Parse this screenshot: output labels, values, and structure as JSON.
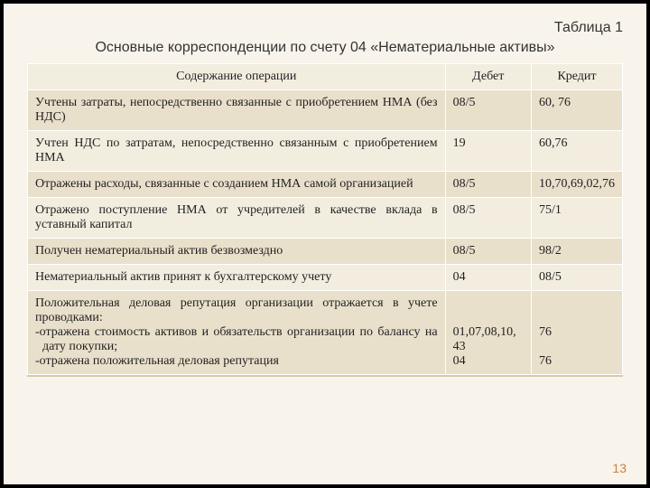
{
  "slide": {
    "table_number": "Таблица 1",
    "caption": "Основные корреспонденции по счету 04 «Нематериальные активы»",
    "page_number": "13"
  },
  "table": {
    "columns": {
      "op": "Содержание операции",
      "debit": "Дебет",
      "credit": "Кредит"
    },
    "column_widths": {
      "op_pct": 71,
      "debit_pct": 14.5,
      "credit_pct": 14.5
    },
    "colors": {
      "header_bg": "#f3ede0",
      "row_even_bg": "#f3ede0",
      "row_odd_bg": "#e9e0cb",
      "border": "#ffffff",
      "slide_bg": "#f9f4eb",
      "outer_border": "#000000",
      "underline": "#d6c9a5",
      "page_number_color": "#c97f3b"
    },
    "fonts": {
      "heading_family": "Arial",
      "body_family": "Times New Roman",
      "heading_size_pt": 12,
      "body_size_pt": 11
    },
    "rows": [
      {
        "op": "Учтены затраты, непосредственно связанные с приобретением НМА (без НДС)",
        "debit": "08/5",
        "credit": "60, 76"
      },
      {
        "op": "Учтен НДС по затратам, непосредственно связанным с приобретением НМА",
        "debit": "19",
        "credit": "60,76"
      },
      {
        "op": "Отражены расходы, связанные с созданием НМА самой организацией",
        "debit": "08/5",
        "credit": "10,70,69,02,76"
      },
      {
        "op": "Отражено поступление НМА от учредителей в качестве вклада в уставный капитал",
        "debit": "08/5",
        "credit": "75/1"
      },
      {
        "op": "Получен нематериальный актив безвозмездно",
        "debit": "08/5",
        "credit": "98/2"
      },
      {
        "op": "Нематериальный актив принят к бухгалтерскому учету",
        "debit": "04",
        "credit": "08/5"
      },
      {
        "op_intro": "Положительная деловая репутация организации отражается в учете проводками:",
        "op_b1": "-отражена стоимость активов и обязательств организации по балансу на дату покупки;",
        "op_b2": "-отражена положительная деловая репутация",
        "debit": "01,07,08,10, 43\n04",
        "credit": "76\n\n76"
      }
    ]
  }
}
